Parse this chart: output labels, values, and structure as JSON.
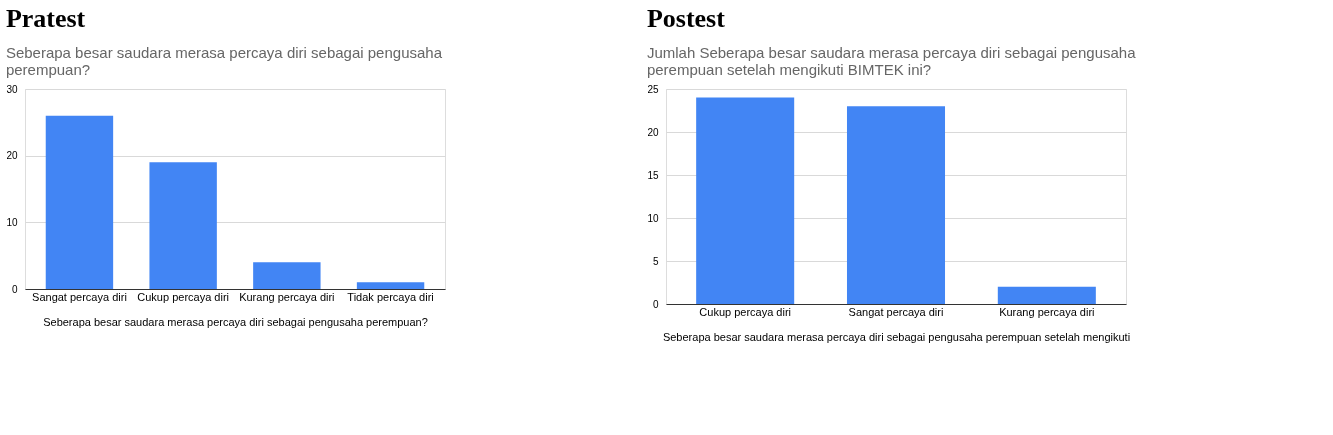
{
  "chart_data": [
    {
      "type": "bar",
      "title": "Pratest",
      "subtitle": "Seberapa besar saudara merasa percaya diri sebagai pengusaha perempuan?",
      "xlabel": "Seberapa besar saudara merasa percaya diri sebagai pengusaha perempuan?",
      "categories": [
        "Sangat percaya diri",
        "Cukup percaya diri",
        "Kurang percaya diri",
        "Tidak percaya diri"
      ],
      "values": [
        26,
        19,
        4,
        1
      ],
      "color": "#4285f4",
      "ylim": [
        0,
        30
      ],
      "yticks": [
        0,
        10,
        20,
        30
      ],
      "grid": "y"
    },
    {
      "type": "bar",
      "title": "Postest",
      "subtitle": "Jumlah Seberapa besar saudara merasa percaya diri sebagai pengusaha perempuan setelah mengikuti BIMTEK ini?",
      "xlabel": "Seberapa besar saudara merasa percaya diri sebagai pengusaha perempuan setelah mengikuti",
      "categories": [
        "Cukup percaya diri",
        "Sangat percaya diri",
        "Kurang percaya diri"
      ],
      "values": [
        24,
        23,
        2
      ],
      "color": "#4285f4",
      "ylim": [
        0,
        25
      ],
      "yticks": [
        0,
        5,
        10,
        15,
        20,
        25
      ],
      "grid": "y"
    }
  ]
}
